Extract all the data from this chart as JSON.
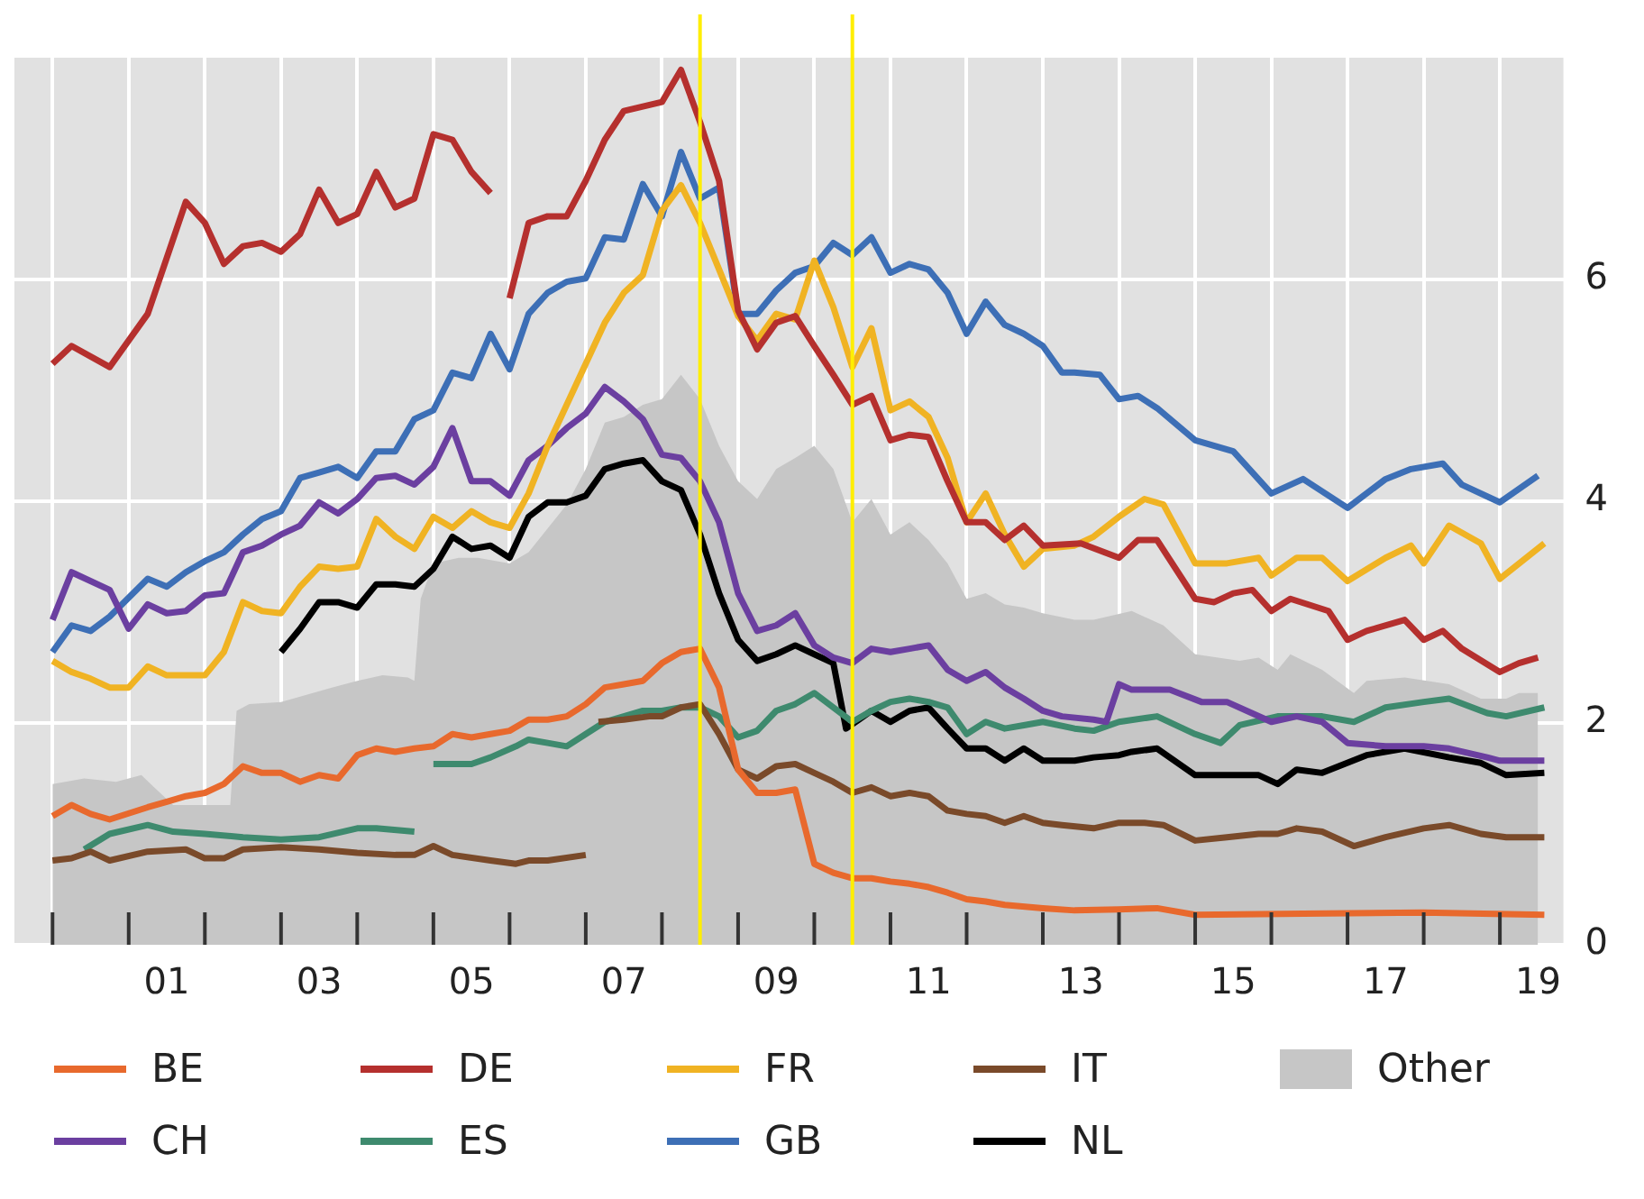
{
  "chart_data": {
    "type": "line",
    "xlim": [
      "1999-07",
      "2019-11"
    ],
    "ylim": [
      0,
      8
    ],
    "yticks": [
      0,
      2,
      4,
      6
    ],
    "grid": true,
    "legend": "bottom",
    "xticks": [
      {
        "value": "2000-01",
        "label": null
      },
      {
        "value": "2001-01",
        "label": null
      },
      {
        "value": "2001-07",
        "label": "01"
      },
      {
        "value": "2002-01",
        "label": null
      },
      {
        "value": "2003-01",
        "label": null
      },
      {
        "value": "2003-07",
        "label": "03"
      },
      {
        "value": "2004-01",
        "label": null
      },
      {
        "value": "2005-01",
        "label": null
      },
      {
        "value": "2005-07",
        "label": "05"
      },
      {
        "value": "2006-01",
        "label": null
      },
      {
        "value": "2007-01",
        "label": null
      },
      {
        "value": "2007-07",
        "label": "07"
      },
      {
        "value": "2008-01",
        "label": null
      },
      {
        "value": "2009-01",
        "label": null
      },
      {
        "value": "2009-07",
        "label": "09"
      },
      {
        "value": "2010-01",
        "label": null
      },
      {
        "value": "2011-01",
        "label": null
      },
      {
        "value": "2011-07",
        "label": "11"
      },
      {
        "value": "2012-01",
        "label": null
      },
      {
        "value": "2013-01",
        "label": null
      },
      {
        "value": "2013-07",
        "label": "13"
      },
      {
        "value": "2014-01",
        "label": null
      },
      {
        "value": "2015-01",
        "label": null
      },
      {
        "value": "2015-07",
        "label": "15"
      },
      {
        "value": "2016-01",
        "label": null
      },
      {
        "value": "2017-01",
        "label": null
      },
      {
        "value": "2017-07",
        "label": "17"
      },
      {
        "value": "2018-01",
        "label": null
      },
      {
        "value": "2019-01",
        "label": null
      },
      {
        "value": "2019-07",
        "label": "19"
      }
    ],
    "ref_lines": [
      {
        "axis": "x",
        "value": "2008-07",
        "color": "#ffee00"
      },
      {
        "axis": "x",
        "value": "2010-07",
        "color": "#ffee00"
      }
    ],
    "series": [
      {
        "name": "BE",
        "color": "#e8692d",
        "x": [
          "2000-01",
          "2000-04",
          "2000-07",
          "2000-10",
          "2001-04",
          "2001-07",
          "2001-10",
          "2002-01",
          "2002-04",
          "2002-07",
          "2002-10",
          "2003-01",
          "2003-04",
          "2003-07",
          "2003-10",
          "2004-01",
          "2004-04",
          "2004-07",
          "2004-10",
          "2005-01",
          "2005-04",
          "2005-07",
          "2005-10",
          "2006-01",
          "2006-04",
          "2006-07",
          "2006-10",
          "2007-01",
          "2007-04",
          "2007-07",
          "2007-10",
          "2008-01",
          "2008-04",
          "2008-07",
          "2008-10",
          "2009-01",
          "2009-04",
          "2009-07",
          "2009-10",
          "2010-01",
          "2010-04",
          "2010-07",
          "2010-10",
          "2011-01",
          "2011-04",
          "2011-07",
          "2011-10",
          "2012-01",
          "2012-04",
          "2012-07",
          "2013-01",
          "2013-06",
          "2014-01",
          "2014-07",
          "2015-01",
          "2016-06",
          "2018-01",
          "2019-08"
        ],
        "values": [
          1.16,
          1.26,
          1.18,
          1.13,
          1.24,
          1.29,
          1.34,
          1.37,
          1.45,
          1.61,
          1.55,
          1.55,
          1.47,
          1.53,
          1.5,
          1.71,
          1.77,
          1.74,
          1.77,
          1.79,
          1.9,
          1.87,
          1.9,
          1.93,
          2.03,
          2.03,
          2.06,
          2.17,
          2.32,
          2.35,
          2.38,
          2.54,
          2.64,
          2.67,
          2.32,
          1.58,
          1.37,
          1.37,
          1.4,
          0.73,
          0.65,
          0.6,
          0.6,
          0.57,
          0.55,
          0.52,
          0.47,
          0.41,
          0.39,
          0.36,
          0.33,
          0.31,
          0.32,
          0.33,
          0.27,
          0.28,
          0.29,
          0.27
        ]
      },
      {
        "name": "DE",
        "color": "#b5302e",
        "x": [
          "2000-01",
          "2000-04",
          "2000-10",
          "2001-04",
          "2001-10",
          "2002-01",
          "2002-04",
          "2002-07",
          "2002-10",
          "2003-01",
          "2003-04",
          "2003-07",
          "2003-10",
          "2004-01",
          "2004-04",
          "2004-07",
          "2004-10",
          "2005-01",
          "2005-04",
          "2005-07",
          "2005-10",
          "2005-12",
          "2006-01",
          "2006-04",
          "2006-07",
          "2006-10",
          "2007-01",
          "2007-04",
          "2007-07",
          "2008-01",
          "2008-04",
          "2008-07",
          "2008-10",
          "2009-01",
          "2009-04",
          "2009-07",
          "2009-10",
          "2010-01",
          "2010-04",
          "2010-07",
          "2010-10",
          "2011-01",
          "2011-04",
          "2011-07",
          "2011-10",
          "2012-01",
          "2012-04",
          "2012-07",
          "2012-10",
          "2013-01",
          "2013-07",
          "2014-01",
          "2014-04",
          "2014-07",
          "2015-01",
          "2015-04",
          "2015-07",
          "2015-10",
          "2016-01",
          "2016-04",
          "2016-10",
          "2017-01",
          "2017-04",
          "2017-10",
          "2018-01",
          "2018-04",
          "2018-07",
          "2019-01",
          "2019-04",
          "2019-07"
        ],
        "values": [
          5.24,
          5.4,
          5.21,
          5.69,
          6.7,
          6.51,
          6.14,
          6.3,
          6.33,
          6.25,
          6.41,
          6.81,
          6.51,
          6.59,
          6.97,
          6.65,
          6.73,
          7.31,
          7.26,
          6.97,
          6.78,
          null,
          5.83,
          6.51,
          6.57,
          6.57,
          6.89,
          7.26,
          7.52,
          7.6,
          7.89,
          7.42,
          6.89,
          5.72,
          5.37,
          5.61,
          5.67,
          5.4,
          5.14,
          4.87,
          4.95,
          4.55,
          4.6,
          4.58,
          4.18,
          3.81,
          3.81,
          3.65,
          3.78,
          3.6,
          3.62,
          3.49,
          3.65,
          3.65,
          3.12,
          3.09,
          3.17,
          3.2,
          3.01,
          3.12,
          3.01,
          2.75,
          2.83,
          2.93,
          2.75,
          2.83,
          2.67,
          2.46,
          2.54,
          2.59
        ]
      },
      {
        "name": "FR",
        "color": "#f0b323",
        "x": [
          "2000-01",
          "2000-04",
          "2000-07",
          "2000-10",
          "2001-01",
          "2001-04",
          "2001-07",
          "2001-10",
          "2002-01",
          "2002-04",
          "2002-07",
          "2002-10",
          "2003-01",
          "2003-04",
          "2003-07",
          "2003-10",
          "2004-01",
          "2004-04",
          "2004-07",
          "2004-10",
          "2005-01",
          "2005-04",
          "2005-07",
          "2005-10",
          "2006-01",
          "2006-04",
          "2006-07",
          "2006-10",
          "2007-01",
          "2007-04",
          "2007-07",
          "2007-10",
          "2008-01",
          "2008-04",
          "2008-07",
          "2008-10",
          "2009-01",
          "2009-04",
          "2009-07",
          "2009-10",
          "2010-01",
          "2010-04",
          "2010-07",
          "2010-10",
          "2011-01",
          "2011-04",
          "2011-07",
          "2011-10",
          "2012-01",
          "2012-04",
          "2012-07",
          "2012-10",
          "2013-01",
          "2013-06",
          "2013-09",
          "2014-01",
          "2014-05",
          "2014-08",
          "2015-01",
          "2015-06",
          "2015-11",
          "2016-01",
          "2016-05",
          "2016-09",
          "2017-01",
          "2017-07",
          "2017-11",
          "2018-01",
          "2018-05",
          "2018-10",
          "2019-01",
          "2019-08"
        ],
        "values": [
          2.56,
          2.46,
          2.4,
          2.32,
          2.32,
          2.51,
          2.43,
          2.43,
          2.43,
          2.64,
          3.09,
          3.01,
          2.99,
          3.23,
          3.41,
          3.39,
          3.41,
          3.84,
          3.68,
          3.57,
          3.86,
          3.76,
          3.91,
          3.81,
          3.76,
          4.07,
          4.5,
          4.87,
          5.24,
          5.61,
          5.88,
          6.04,
          6.62,
          6.85,
          6.51,
          6.09,
          5.67,
          5.45,
          5.69,
          5.64,
          6.17,
          5.75,
          5.21,
          5.56,
          4.82,
          4.9,
          4.76,
          4.39,
          3.81,
          4.07,
          3.7,
          3.41,
          3.57,
          3.6,
          3.68,
          3.86,
          4.02,
          3.97,
          3.44,
          3.44,
          3.49,
          3.33,
          3.49,
          3.49,
          3.28,
          3.49,
          3.6,
          3.44,
          3.78,
          3.62,
          3.3,
          3.62
        ]
      },
      {
        "name": "IT",
        "color": "#7a4a2a",
        "x": [
          "2000-01",
          "2000-04",
          "2000-07",
          "2000-10",
          "2001-04",
          "2001-10",
          "2002-01",
          "2002-04",
          "2002-07",
          "2003-01",
          "2003-07",
          "2004-01",
          "2004-07",
          "2004-10",
          "2005-01",
          "2005-04",
          "2005-10",
          "2006-02",
          "2006-04",
          "2006-07",
          "2007-01",
          "2007-02",
          "2007-03",
          "2007-07",
          "2007-11",
          "2008-01",
          "2008-04",
          "2008-07",
          "2008-10",
          "2009-01",
          "2009-04",
          "2009-07",
          "2009-10",
          "2010-01",
          "2010-04",
          "2010-07",
          "2010-10",
          "2011-01",
          "2011-04",
          "2011-07",
          "2011-10",
          "2012-01",
          "2012-04",
          "2012-07",
          "2012-10",
          "2013-01",
          "2013-04",
          "2013-09",
          "2014-01",
          "2014-05",
          "2014-08",
          "2015-01",
          "2015-06",
          "2015-11",
          "2016-02",
          "2016-05",
          "2016-09",
          "2017-02",
          "2017-07",
          "2018-01",
          "2018-05",
          "2018-10",
          "2019-02",
          "2019-08"
        ],
        "values": [
          0.76,
          0.78,
          0.84,
          0.76,
          0.84,
          0.86,
          0.78,
          0.78,
          0.86,
          0.88,
          0.86,
          0.83,
          0.81,
          0.81,
          0.89,
          0.81,
          0.76,
          0.73,
          0.76,
          0.76,
          0.81,
          null,
          2.01,
          2.03,
          2.06,
          2.06,
          2.14,
          2.17,
          1.9,
          1.58,
          1.5,
          1.61,
          1.63,
          1.55,
          1.47,
          1.37,
          1.42,
          1.34,
          1.37,
          1.34,
          1.21,
          1.18,
          1.16,
          1.1,
          1.16,
          1.1,
          1.08,
          1.05,
          1.1,
          1.1,
          1.08,
          0.94,
          0.97,
          1.0,
          1.0,
          1.05,
          1.02,
          0.89,
          0.97,
          1.05,
          1.08,
          1.0,
          0.97,
          0.97
        ]
      },
      {
        "name": "Other",
        "type": "area",
        "color": "#c6c6c6",
        "x": [
          "2000-01",
          "2000-06",
          "2000-11",
          "2001-03",
          "2001-05",
          "2001-08",
          "2002-05",
          "2002-06",
          "2002-08",
          "2003-01",
          "2003-06",
          "2003-09",
          "2004-01",
          "2004-05",
          "2004-09",
          "2004-10",
          "2004-11",
          "2005-01",
          "2005-05",
          "2005-08",
          "2006-01",
          "2006-04",
          "2006-10",
          "2007-01",
          "2007-04",
          "2007-07",
          "2007-10",
          "2008-01",
          "2008-04",
          "2008-07",
          "2008-10",
          "2009-01",
          "2009-04",
          "2009-07",
          "2009-10",
          "2010-01",
          "2010-04",
          "2010-07",
          "2010-10",
          "2011-01",
          "2011-04",
          "2011-07",
          "2011-10",
          "2012-01",
          "2012-04",
          "2012-07",
          "2012-10",
          "2013-01",
          "2013-06",
          "2013-09",
          "2014-03",
          "2014-08",
          "2015-01",
          "2015-08",
          "2015-11",
          "2016-02",
          "2016-04",
          "2016-09",
          "2017-02",
          "2017-04",
          "2017-10",
          "2018-05",
          "2018-10",
          "2019-02",
          "2019-04",
          "2019-07"
        ],
        "values": [
          1.45,
          1.5,
          1.47,
          1.53,
          1.42,
          1.26,
          1.26,
          2.11,
          2.17,
          2.19,
          2.27,
          2.32,
          2.38,
          2.43,
          2.41,
          2.38,
          3.12,
          3.44,
          3.49,
          3.49,
          3.44,
          3.54,
          3.97,
          4.29,
          4.71,
          4.76,
          4.87,
          4.92,
          5.14,
          4.92,
          4.5,
          4.18,
          4.02,
          4.29,
          4.39,
          4.5,
          4.29,
          3.81,
          4.02,
          3.7,
          3.81,
          3.65,
          3.44,
          3.12,
          3.17,
          3.07,
          3.04,
          2.99,
          2.93,
          2.93,
          3.01,
          2.88,
          2.62,
          2.56,
          2.59,
          2.48,
          2.62,
          2.48,
          2.27,
          2.38,
          2.41,
          2.35,
          2.22,
          2.22,
          2.27,
          2.27
        ]
      },
      {
        "name": "CH",
        "color": "#6b3fa0",
        "x": [
          "2000-01",
          "2000-04",
          "2000-10",
          "2001-01",
          "2001-04",
          "2001-07",
          "2001-10",
          "2002-01",
          "2002-04",
          "2002-07",
          "2002-10",
          "2003-01",
          "2003-04",
          "2003-07",
          "2003-10",
          "2004-01",
          "2004-04",
          "2004-07",
          "2004-10",
          "2005-01",
          "2005-04",
          "2005-07",
          "2005-10",
          "2006-01",
          "2006-04",
          "2006-07",
          "2006-10",
          "2007-01",
          "2007-04",
          "2007-07",
          "2007-10",
          "2008-01",
          "2008-04",
          "2008-07",
          "2008-10",
          "2009-01",
          "2009-04",
          "2009-07",
          "2009-10",
          "2010-01",
          "2010-04",
          "2010-07",
          "2010-10",
          "2011-01",
          "2011-04",
          "2011-07",
          "2011-10",
          "2012-01",
          "2012-04",
          "2012-07",
          "2012-10",
          "2013-01",
          "2013-04",
          "2013-09",
          "2013-11",
          "2014-01",
          "2014-03",
          "2014-09",
          "2015-02",
          "2015-06",
          "2016-01",
          "2016-05",
          "2016-09",
          "2017-01",
          "2017-07",
          "2018-01",
          "2018-05",
          "2018-11",
          "2019-01",
          "2019-08"
        ],
        "values": [
          2.93,
          3.36,
          3.2,
          2.85,
          3.07,
          2.99,
          3.01,
          3.15,
          3.17,
          3.54,
          3.6,
          3.7,
          3.78,
          3.99,
          3.89,
          4.02,
          4.21,
          4.23,
          4.15,
          4.31,
          4.66,
          4.18,
          4.18,
          4.05,
          4.37,
          4.5,
          4.66,
          4.79,
          5.03,
          4.9,
          4.74,
          4.42,
          4.39,
          4.18,
          3.81,
          3.17,
          2.83,
          2.88,
          2.99,
          2.7,
          2.59,
          2.54,
          2.67,
          2.64,
          2.67,
          2.7,
          2.48,
          2.38,
          2.46,
          2.32,
          2.22,
          2.11,
          2.06,
          2.03,
          2.01,
          2.35,
          2.3,
          2.3,
          2.19,
          2.19,
          2.01,
          2.06,
          2.01,
          1.82,
          1.79,
          1.79,
          1.77,
          1.69,
          1.66,
          1.66
        ]
      },
      {
        "name": "ES",
        "color": "#3e8a6e",
        "x": [
          "2000-06",
          "2000-10",
          "2001-04",
          "2001-08",
          "2002-01",
          "2002-07",
          "2003-01",
          "2003-07",
          "2004-01",
          "2004-04",
          "2004-10",
          "2004-11",
          "2005-01",
          "2005-07",
          "2005-10",
          "2006-02",
          "2006-04",
          "2006-07",
          "2006-10",
          "2007-01",
          "2007-04",
          "2007-07",
          "2007-10",
          "2008-01",
          "2008-04",
          "2008-07",
          "2008-10",
          "2009-01",
          "2009-04",
          "2009-07",
          "2009-10",
          "2010-01",
          "2010-04",
          "2010-07",
          "2010-10",
          "2011-01",
          "2011-04",
          "2011-07",
          "2011-10",
          "2012-01",
          "2012-04",
          "2012-07",
          "2012-10",
          "2013-01",
          "2013-06",
          "2013-09",
          "2014-01",
          "2014-07",
          "2015-01",
          "2015-05",
          "2015-08",
          "2016-02",
          "2016-09",
          "2017-02",
          "2017-07",
          "2018-01",
          "2018-05",
          "2018-11",
          "2019-02",
          "2019-08"
        ],
        "values": [
          0.86,
          1.0,
          1.08,
          1.02,
          1.0,
          0.97,
          0.95,
          0.97,
          1.05,
          1.05,
          1.02,
          null,
          1.63,
          1.63,
          1.69,
          1.79,
          1.85,
          1.82,
          1.79,
          1.9,
          2.01,
          2.06,
          2.11,
          2.11,
          2.14,
          2.14,
          2.06,
          1.87,
          1.93,
          2.11,
          2.17,
          2.27,
          2.14,
          2.01,
          2.11,
          2.19,
          2.22,
          2.19,
          2.14,
          1.9,
          2.01,
          1.95,
          1.98,
          2.01,
          1.95,
          1.93,
          2.01,
          2.06,
          1.9,
          1.82,
          1.98,
          2.06,
          2.06,
          2.01,
          2.14,
          2.19,
          2.22,
          2.09,
          2.06,
          2.14
        ]
      },
      {
        "name": "GB",
        "color": "#3d6fb6",
        "x": [
          "2000-01",
          "2000-04",
          "2000-07",
          "2000-10",
          "2001-04",
          "2001-07",
          "2001-10",
          "2002-01",
          "2002-04",
          "2002-07",
          "2002-10",
          "2003-01",
          "2003-04",
          "2003-07",
          "2003-10",
          "2004-01",
          "2004-04",
          "2004-07",
          "2004-10",
          "2005-01",
          "2005-04",
          "2005-07",
          "2005-10",
          "2006-01",
          "2006-04",
          "2006-07",
          "2006-10",
          "2007-01",
          "2007-04",
          "2007-07",
          "2007-10",
          "2008-01",
          "2008-04",
          "2008-07",
          "2008-10",
          "2009-01",
          "2009-04",
          "2009-07",
          "2009-10",
          "2010-01",
          "2010-04",
          "2010-07",
          "2010-10",
          "2011-01",
          "2011-04",
          "2011-07",
          "2011-10",
          "2012-01",
          "2012-04",
          "2012-07",
          "2012-10",
          "2013-01",
          "2013-04",
          "2013-06",
          "2013-10",
          "2014-01",
          "2014-04",
          "2014-07",
          "2015-01",
          "2015-07",
          "2016-01",
          "2016-06",
          "2017-01",
          "2017-07",
          "2017-11",
          "2018-04",
          "2018-07",
          "2019-01",
          "2019-07"
        ],
        "values": [
          2.64,
          2.88,
          2.83,
          2.96,
          3.3,
          3.23,
          3.36,
          3.46,
          3.54,
          3.7,
          3.84,
          3.91,
          4.21,
          4.26,
          4.31,
          4.21,
          4.45,
          4.45,
          4.74,
          4.82,
          5.16,
          5.11,
          5.51,
          5.19,
          5.69,
          5.88,
          5.98,
          6.01,
          6.38,
          6.36,
          6.86,
          6.57,
          7.15,
          6.73,
          6.83,
          5.69,
          5.69,
          5.9,
          6.06,
          6.12,
          6.33,
          6.22,
          6.38,
          6.06,
          6.14,
          6.09,
          5.88,
          5.51,
          5.8,
          5.59,
          5.51,
          5.4,
          5.16,
          5.16,
          5.14,
          4.92,
          4.95,
          4.84,
          4.55,
          4.45,
          4.07,
          4.2,
          3.94,
          4.2,
          4.29,
          4.34,
          4.15,
          3.99,
          4.23
        ]
      },
      {
        "name": "NL",
        "color": "#000000",
        "x": [
          "2003-01",
          "2003-04",
          "2003-07",
          "2003-10",
          "2004-01",
          "2004-04",
          "2004-07",
          "2004-10",
          "2005-01",
          "2005-04",
          "2005-07",
          "2005-10",
          "2006-01",
          "2006-04",
          "2006-07",
          "2006-10",
          "2007-01",
          "2007-04",
          "2007-07",
          "2007-10",
          "2008-01",
          "2008-04",
          "2008-07",
          "2008-10",
          "2009-01",
          "2009-04",
          "2009-07",
          "2009-10",
          "2010-01",
          "2010-04",
          "2010-06",
          "2010-08",
          "2010-10",
          "2011-01",
          "2011-04",
          "2011-07",
          "2011-10",
          "2012-01",
          "2012-04",
          "2012-07",
          "2012-10",
          "2013-01",
          "2013-06",
          "2013-09",
          "2014-01",
          "2014-03",
          "2014-07",
          "2015-01",
          "2015-08",
          "2015-11",
          "2016-02",
          "2016-05",
          "2016-09",
          "2017-04",
          "2017-10",
          "2018-05",
          "2018-10",
          "2019-02",
          "2019-08"
        ],
        "values": [
          2.64,
          2.85,
          3.09,
          3.09,
          3.04,
          3.25,
          3.25,
          3.23,
          3.39,
          3.68,
          3.57,
          3.6,
          3.49,
          3.86,
          3.99,
          3.99,
          4.05,
          4.29,
          4.34,
          4.37,
          4.18,
          4.1,
          3.7,
          3.17,
          2.75,
          2.56,
          2.62,
          2.7,
          2.62,
          2.54,
          1.95,
          2.03,
          2.11,
          2.01,
          2.11,
          2.14,
          1.95,
          1.77,
          1.77,
          1.66,
          1.77,
          1.66,
          1.66,
          1.69,
          1.71,
          1.74,
          1.77,
          1.53,
          1.53,
          1.53,
          1.45,
          1.58,
          1.55,
          1.71,
          1.77,
          1.69,
          1.64,
          1.53,
          1.55
        ]
      }
    ]
  }
}
